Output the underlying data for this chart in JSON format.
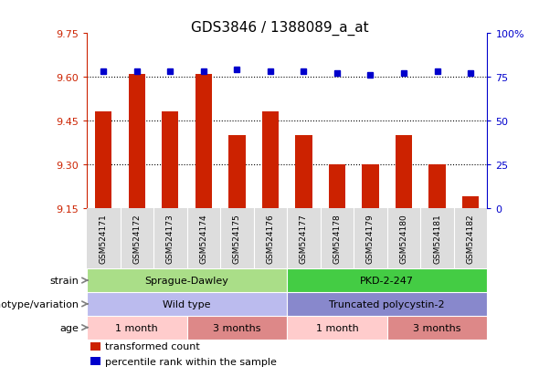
{
  "title": "GDS3846 / 1388089_a_at",
  "samples": [
    "GSM524171",
    "GSM524172",
    "GSM524173",
    "GSM524174",
    "GSM524175",
    "GSM524176",
    "GSM524177",
    "GSM524178",
    "GSM524179",
    "GSM524180",
    "GSM524181",
    "GSM524182"
  ],
  "bar_values": [
    9.48,
    9.61,
    9.48,
    9.61,
    9.4,
    9.48,
    9.4,
    9.3,
    9.3,
    9.4,
    9.3,
    9.19
  ],
  "percentile_values": [
    78,
    78,
    78,
    78,
    79,
    78,
    78,
    77,
    76,
    77,
    78,
    77
  ],
  "ylim": [
    9.15,
    9.75
  ],
  "yticks": [
    9.15,
    9.3,
    9.45,
    9.6,
    9.75
  ],
  "y2lim": [
    0,
    100
  ],
  "y2ticks": [
    0,
    25,
    50,
    75,
    100
  ],
  "y2ticklabels": [
    "0",
    "25",
    "50",
    "75",
    "100%"
  ],
  "bar_color": "#cc2200",
  "dot_color": "#0000cc",
  "strain_labels": [
    {
      "text": "Sprague-Dawley",
      "start": 0,
      "end": 6,
      "color": "#aade88"
    },
    {
      "text": "PKD-2-247",
      "start": 6,
      "end": 12,
      "color": "#44cc44"
    }
  ],
  "genotype_labels": [
    {
      "text": "Wild type",
      "start": 0,
      "end": 6,
      "color": "#bbbbee"
    },
    {
      "text": "Truncated polycystin-2",
      "start": 6,
      "end": 12,
      "color": "#8888cc"
    }
  ],
  "age_labels": [
    {
      "text": "1 month",
      "start": 0,
      "end": 3,
      "color": "#ffcccc"
    },
    {
      "text": "3 months",
      "start": 3,
      "end": 6,
      "color": "#dd8888"
    },
    {
      "text": "1 month",
      "start": 6,
      "end": 9,
      "color": "#ffcccc"
    },
    {
      "text": "3 months",
      "start": 9,
      "end": 12,
      "color": "#dd8888"
    }
  ],
  "row_labels": [
    "strain",
    "genotype/variation",
    "age"
  ],
  "legend_items": [
    {
      "color": "#cc2200",
      "label": "transformed count"
    },
    {
      "color": "#0000cc",
      "label": "percentile rank within the sample"
    }
  ],
  "grid_yticks": [
    9.3,
    9.45,
    9.6
  ]
}
